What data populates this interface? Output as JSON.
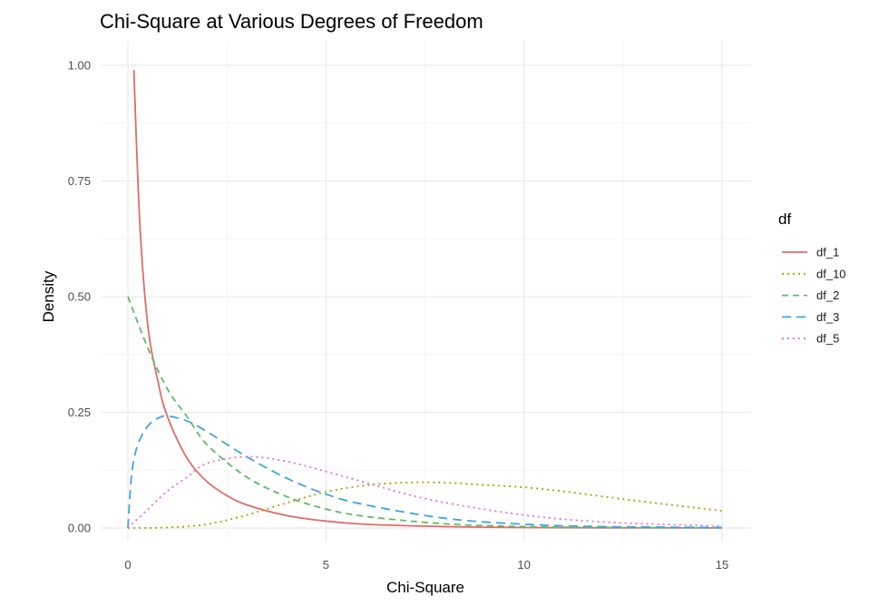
{
  "chart_data": {
    "type": "line",
    "title": "Chi-Square at Various Degrees of Freedom",
    "xlabel": "Chi-Square",
    "ylabel": "Density",
    "xlim": [
      0,
      15
    ],
    "ylim": [
      0,
      1.0
    ],
    "x_ticks": [
      "0",
      "5",
      "10",
      "15"
    ],
    "y_ticks": [
      "0.00",
      "0.25",
      "0.50",
      "0.75",
      "1.00"
    ],
    "grid": true,
    "legend": {
      "title": "df",
      "placement": "right"
    },
    "series": [
      {
        "name": "df_1",
        "color": "#E06B67",
        "dash": "solid",
        "x": [
          0.15,
          0.3,
          0.5,
          0.75,
          1,
          1.5,
          2,
          2.5,
          3,
          4,
          5,
          6,
          8,
          10,
          12,
          15
        ],
        "y": [
          0.99,
          0.66,
          0.44,
          0.32,
          0.24,
          0.15,
          0.1,
          0.07,
          0.05,
          0.027,
          0.015,
          0.008,
          0.003,
          0.001,
          0.0004,
          0.0001
        ]
      },
      {
        "name": "df_10",
        "color": "#A3A500",
        "dash": "dotted",
        "x": [
          0,
          1,
          2,
          3,
          4,
          5,
          6,
          7,
          8,
          9,
          10,
          11,
          12,
          13,
          14,
          15
        ],
        "y": [
          0.0,
          0.001,
          0.008,
          0.028,
          0.054,
          0.078,
          0.092,
          0.098,
          0.098,
          0.093,
          0.088,
          0.079,
          0.068,
          0.057,
          0.047,
          0.037
        ]
      },
      {
        "name": "df_2",
        "color": "#5BBD64",
        "dash": "dashed",
        "x": [
          0,
          0.5,
          1,
          1.5,
          2,
          3,
          4,
          5,
          6,
          8,
          10,
          12,
          15
        ],
        "y": [
          0.5,
          0.39,
          0.3,
          0.24,
          0.18,
          0.11,
          0.068,
          0.041,
          0.025,
          0.009,
          0.003,
          0.001,
          0.0003
        ]
      },
      {
        "name": "df_3",
        "color": "#3FA3E0",
        "dash": "longdash",
        "x": [
          0,
          0.1,
          0.25,
          0.5,
          0.75,
          1,
          1.5,
          2,
          3,
          4,
          5,
          6,
          8,
          10,
          12,
          15
        ],
        "y": [
          0.0,
          0.12,
          0.18,
          0.22,
          0.237,
          0.242,
          0.231,
          0.208,
          0.154,
          0.108,
          0.073,
          0.05,
          0.021,
          0.008,
          0.003,
          0.001
        ]
      },
      {
        "name": "df_5",
        "color": "#E36FE0",
        "dash": "dotdash",
        "x": [
          0,
          0.5,
          1,
          1.5,
          2,
          3,
          4,
          5,
          6,
          7,
          8,
          10,
          12,
          15
        ],
        "y": [
          0.0,
          0.04,
          0.08,
          0.11,
          0.14,
          0.154,
          0.144,
          0.122,
          0.098,
          0.074,
          0.055,
          0.028,
          0.013,
          0.004
        ]
      }
    ]
  }
}
